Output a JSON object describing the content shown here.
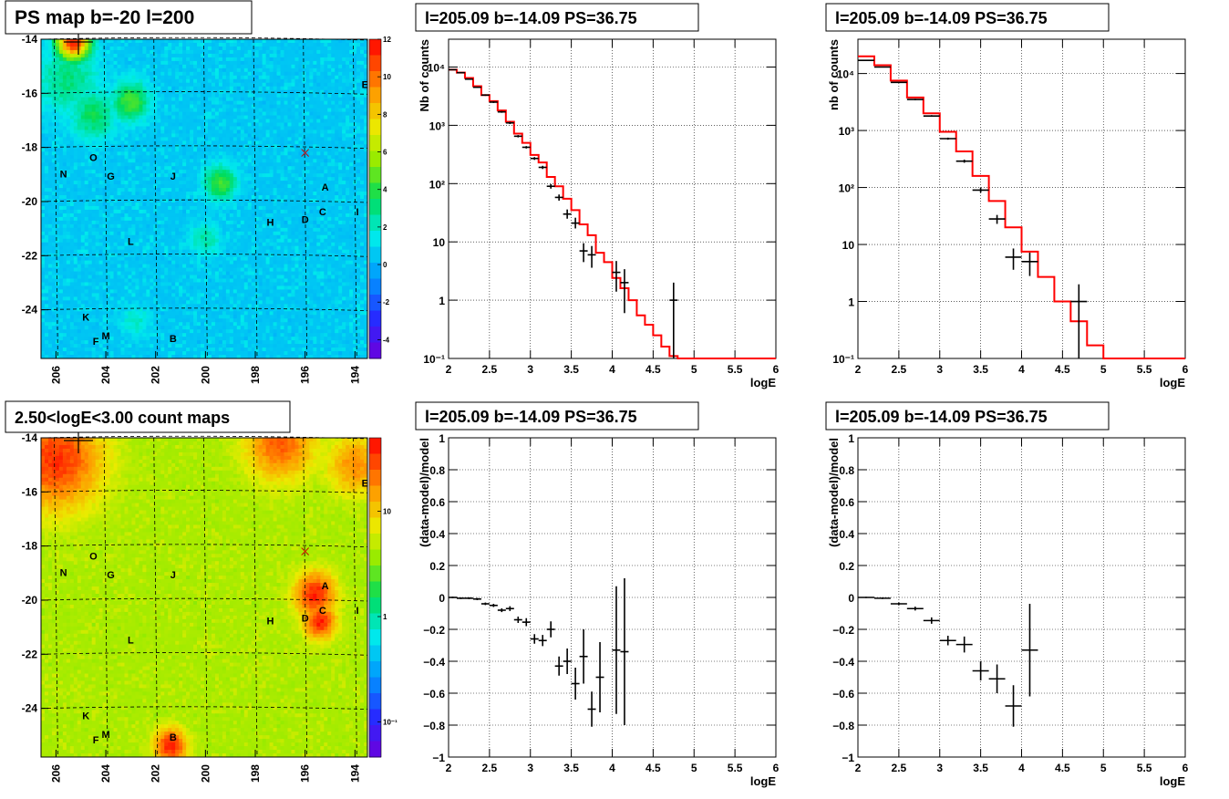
{
  "chart_data": [
    {
      "type": "heatmap",
      "id": "map1",
      "title": "PS map b=-20 l=200",
      "x_ticks": [
        "206",
        "204",
        "202",
        "200",
        "198",
        "196",
        "194"
      ],
      "y_ticks": [
        "-14",
        "-16",
        "-18",
        "-20",
        "-22",
        "-24"
      ],
      "xlim": [
        206.6,
        193.5
      ],
      "ylim": [
        -25.8,
        -14.0
      ],
      "palette_ticks": [
        "12",
        "10",
        "8",
        "6",
        "4",
        "2",
        "0",
        "-2",
        "-4"
      ],
      "zlim": [
        -5,
        12
      ],
      "colormap": "rainbow",
      "background_level": 0.3,
      "hotspots": [
        {
          "l": 205.3,
          "b": -14.1,
          "r": 0.7,
          "level": 11.5
        },
        {
          "l": 203.0,
          "b": -16.3,
          "r": 0.8,
          "level": 4.5
        },
        {
          "l": 204.5,
          "b": -16.8,
          "r": 1.0,
          "level": 3.5
        },
        {
          "l": 199.4,
          "b": -19.3,
          "r": 0.7,
          "level": 4.5
        },
        {
          "l": 205.5,
          "b": -15.5,
          "r": 1.4,
          "level": 3.0
        },
        {
          "l": 200.0,
          "b": -21.4,
          "r": 0.7,
          "level": 2.5
        },
        {
          "l": 202.8,
          "b": -24.4,
          "r": 0.7,
          "level": 2.0
        }
      ],
      "sources": [
        {
          "label": "N",
          "l": 205.7,
          "b": -19.1
        },
        {
          "label": "O",
          "l": 204.5,
          "b": -18.5
        },
        {
          "label": "G",
          "l": 203.8,
          "b": -19.2
        },
        {
          "label": "J",
          "l": 201.3,
          "b": -19.2
        },
        {
          "label": "A",
          "l": 195.2,
          "b": -19.6
        },
        {
          "label": "C",
          "l": 195.3,
          "b": -20.5
        },
        {
          "label": "D",
          "l": 196.0,
          "b": -20.8
        },
        {
          "label": "H",
          "l": 197.4,
          "b": -20.9
        },
        {
          "label": "I",
          "l": 193.9,
          "b": -20.5
        },
        {
          "label": "L",
          "l": 203.0,
          "b": -21.6
        },
        {
          "label": "K",
          "l": 204.8,
          "b": -24.4
        },
        {
          "label": "M",
          "l": 204.0,
          "b": -25.1
        },
        {
          "label": "F",
          "l": 204.4,
          "b": -25.3
        },
        {
          "label": "B",
          "l": 201.3,
          "b": -25.2
        },
        {
          "label": "E",
          "l": 193.6,
          "b": -15.8
        }
      ],
      "cross": {
        "l": 196.0,
        "b": -18.2
      },
      "marker": {
        "l": 205.1,
        "b": -14.1
      }
    },
    {
      "type": "heatmap",
      "id": "map2",
      "title": "2.50<logE<3.00 count maps",
      "x_ticks": [
        "206",
        "204",
        "202",
        "200",
        "198",
        "196",
        "194"
      ],
      "y_ticks": [
        "-14",
        "-16",
        "-18",
        "-20",
        "-22",
        "-24"
      ],
      "xlim": [
        206.6,
        193.5
      ],
      "ylim": [
        -25.8,
        -14.0
      ],
      "palette_ticks": [
        "10",
        "1",
        "10⁻¹"
      ],
      "zscale": "log",
      "colormap": "rainbow",
      "background_level": 0.62,
      "hotspots": [
        {
          "l": 206.0,
          "b": -14.8,
          "r": 2.0,
          "level": 0.95
        },
        {
          "l": 197.0,
          "b": -14.2,
          "r": 1.5,
          "level": 0.9
        },
        {
          "l": 195.6,
          "b": -19.8,
          "r": 0.9,
          "level": 0.97
        },
        {
          "l": 195.4,
          "b": -20.8,
          "r": 0.7,
          "level": 0.97
        },
        {
          "l": 201.4,
          "b": -25.4,
          "r": 0.7,
          "level": 0.97
        },
        {
          "l": 194.0,
          "b": -15.0,
          "r": 1.2,
          "level": 0.85
        }
      ],
      "sources": [
        {
          "label": "N",
          "l": 205.7,
          "b": -19.1
        },
        {
          "label": "O",
          "l": 204.5,
          "b": -18.5
        },
        {
          "label": "G",
          "l": 203.8,
          "b": -19.2
        },
        {
          "label": "J",
          "l": 201.3,
          "b": -19.2
        },
        {
          "label": "A",
          "l": 195.2,
          "b": -19.6
        },
        {
          "label": "C",
          "l": 195.3,
          "b": -20.5
        },
        {
          "label": "D",
          "l": 196.0,
          "b": -20.8
        },
        {
          "label": "H",
          "l": 197.4,
          "b": -20.9
        },
        {
          "label": "I",
          "l": 193.9,
          "b": -20.5
        },
        {
          "label": "L",
          "l": 203.0,
          "b": -21.6
        },
        {
          "label": "K",
          "l": 204.8,
          "b": -24.4
        },
        {
          "label": "M",
          "l": 204.0,
          "b": -25.1
        },
        {
          "label": "F",
          "l": 204.4,
          "b": -25.3
        },
        {
          "label": "B",
          "l": 201.3,
          "b": -25.2
        },
        {
          "label": "E",
          "l": 193.6,
          "b": -15.8
        }
      ],
      "cross": {
        "l": 196.0,
        "b": -18.2
      },
      "marker": {
        "l": 205.1,
        "b": -14.1
      }
    },
    {
      "type": "line",
      "id": "spec1",
      "title": "l=205.09 b=-14.09 PS=36.75",
      "xlabel": "logE",
      "ylabel": "Nb of counts",
      "xlim": [
        2,
        6
      ],
      "ylim": [
        0.1,
        30000
      ],
      "yscale": "log",
      "grid": true,
      "x_ticks": [
        2,
        2.5,
        3,
        3.5,
        4,
        4.5,
        5,
        5.5,
        6
      ],
      "x_tick_labels": [
        "2",
        "2.5",
        "3",
        "3.5",
        "4",
        "4.5",
        "5",
        "5.5",
        "6"
      ],
      "y_ticks": [
        0.1,
        1,
        10,
        100,
        1000,
        10000
      ],
      "y_tick_labels": [
        "10⁻¹",
        "1",
        "10",
        "10²",
        "10³",
        "10⁴"
      ],
      "model_color": "#ff0000",
      "model_bin_width": 0.1,
      "model": [
        {
          "x": 2.0,
          "y": 9000
        },
        {
          "x": 2.1,
          "y": 8000
        },
        {
          "x": 2.2,
          "y": 6500
        },
        {
          "x": 2.3,
          "y": 4700
        },
        {
          "x": 2.4,
          "y": 3300
        },
        {
          "x": 2.5,
          "y": 2600
        },
        {
          "x": 2.6,
          "y": 1800
        },
        {
          "x": 2.7,
          "y": 1150
        },
        {
          "x": 2.8,
          "y": 720
        },
        {
          "x": 2.9,
          "y": 500
        },
        {
          "x": 3.0,
          "y": 310
        },
        {
          "x": 3.1,
          "y": 230
        },
        {
          "x": 3.2,
          "y": 130
        },
        {
          "x": 3.3,
          "y": 90
        },
        {
          "x": 3.4,
          "y": 55
        },
        {
          "x": 3.5,
          "y": 35
        },
        {
          "x": 3.6,
          "y": 20
        },
        {
          "x": 3.7,
          "y": 13
        },
        {
          "x": 3.8,
          "y": 6.5
        },
        {
          "x": 3.9,
          "y": 4.5
        },
        {
          "x": 4.0,
          "y": 2.4
        },
        {
          "x": 4.1,
          "y": 1.6
        },
        {
          "x": 4.2,
          "y": 1.0
        },
        {
          "x": 4.3,
          "y": 0.55
        },
        {
          "x": 4.4,
          "y": 0.38
        },
        {
          "x": 4.5,
          "y": 0.25
        },
        {
          "x": 4.6,
          "y": 0.16
        },
        {
          "x": 4.7,
          "y": 0.11
        },
        {
          "x": 4.8,
          "y": 0.1
        },
        {
          "x": 4.9,
          "y": 0.1
        },
        {
          "x": 5.0,
          "y": 0.1
        },
        {
          "x": 5.1,
          "y": 0.1
        },
        {
          "x": 5.2,
          "y": 0.1
        },
        {
          "x": 5.3,
          "y": 0.1
        },
        {
          "x": 5.4,
          "y": 0.1
        },
        {
          "x": 5.5,
          "y": 0.1
        },
        {
          "x": 5.6,
          "y": 0.1
        },
        {
          "x": 5.7,
          "y": 0.1
        },
        {
          "x": 5.8,
          "y": 0.1
        },
        {
          "x": 5.9,
          "y": 0.1
        }
      ],
      "points": [
        {
          "x": 2.05,
          "y": 9000,
          "lo": 8900,
          "hi": 9100
        },
        {
          "x": 2.15,
          "y": 8000,
          "lo": 7900,
          "hi": 8100
        },
        {
          "x": 2.25,
          "y": 6200,
          "lo": 6100,
          "hi": 6300
        },
        {
          "x": 2.35,
          "y": 4500,
          "lo": 4400,
          "hi": 4600
        },
        {
          "x": 2.45,
          "y": 3300,
          "lo": 3200,
          "hi": 3400
        },
        {
          "x": 2.55,
          "y": 2500,
          "lo": 2420,
          "hi": 2580
        },
        {
          "x": 2.65,
          "y": 1700,
          "lo": 1640,
          "hi": 1760
        },
        {
          "x": 2.75,
          "y": 1100,
          "lo": 1050,
          "hi": 1150
        },
        {
          "x": 2.85,
          "y": 650,
          "lo": 620,
          "hi": 680
        },
        {
          "x": 2.95,
          "y": 420,
          "lo": 400,
          "hi": 440
        },
        {
          "x": 3.05,
          "y": 270,
          "lo": 255,
          "hi": 285
        },
        {
          "x": 3.15,
          "y": 190,
          "lo": 178,
          "hi": 202
        },
        {
          "x": 3.25,
          "y": 90,
          "lo": 82,
          "hi": 98
        },
        {
          "x": 3.35,
          "y": 58,
          "lo": 51,
          "hi": 65
        },
        {
          "x": 3.45,
          "y": 30,
          "lo": 25,
          "hi": 36
        },
        {
          "x": 3.55,
          "y": 21,
          "lo": 17,
          "hi": 26
        },
        {
          "x": 3.65,
          "y": 7,
          "lo": 4.5,
          "hi": 9.5
        },
        {
          "x": 3.75,
          "y": 6,
          "lo": 3.6,
          "hi": 8.5
        },
        {
          "x": 4.05,
          "y": 3,
          "lo": 1.4,
          "hi": 4.7
        },
        {
          "x": 4.15,
          "y": 2,
          "lo": 0.6,
          "hi": 3.4
        },
        {
          "x": 4.75,
          "y": 1,
          "lo": 0.1,
          "hi": 2.0
        }
      ]
    },
    {
      "type": "line",
      "id": "spec2",
      "title": "l=205.09 b=-14.09 PS=36.75",
      "xlabel": "logE",
      "ylabel": "nb of counts",
      "xlim": [
        2,
        6
      ],
      "ylim": [
        0.1,
        40000
      ],
      "yscale": "log",
      "grid": true,
      "x_ticks": [
        2,
        2.5,
        3,
        3.5,
        4,
        4.5,
        5,
        5.5,
        6
      ],
      "x_tick_labels": [
        "2",
        "2.5",
        "3",
        "3.5",
        "4",
        "4.5",
        "5",
        "5.5",
        "6"
      ],
      "y_ticks": [
        0.1,
        1,
        10,
        100,
        1000,
        10000
      ],
      "y_tick_labels": [
        "10⁻¹",
        "1",
        "10",
        "10²",
        "10³",
        "10⁴"
      ],
      "model_color": "#ff0000",
      "model_bin_width": 0.2,
      "model": [
        {
          "x": 2.0,
          "y": 20000
        },
        {
          "x": 2.2,
          "y": 14000
        },
        {
          "x": 2.4,
          "y": 7500
        },
        {
          "x": 2.6,
          "y": 3800
        },
        {
          "x": 2.8,
          "y": 2000
        },
        {
          "x": 3.0,
          "y": 950
        },
        {
          "x": 3.2,
          "y": 430
        },
        {
          "x": 3.4,
          "y": 160
        },
        {
          "x": 3.6,
          "y": 58
        },
        {
          "x": 3.8,
          "y": 20
        },
        {
          "x": 4.0,
          "y": 7.5
        },
        {
          "x": 4.2,
          "y": 2.7
        },
        {
          "x": 4.4,
          "y": 1.0
        },
        {
          "x": 4.6,
          "y": 0.45
        },
        {
          "x": 4.8,
          "y": 0.17
        },
        {
          "x": 5.0,
          "y": 0.1
        },
        {
          "x": 5.2,
          "y": 0.1
        },
        {
          "x": 5.4,
          "y": 0.1
        },
        {
          "x": 5.6,
          "y": 0.1
        },
        {
          "x": 5.8,
          "y": 0.1
        }
      ],
      "points": [
        {
          "x": 2.1,
          "y": 17000,
          "lo": 16700,
          "hi": 17300
        },
        {
          "x": 2.3,
          "y": 13000,
          "lo": 12800,
          "hi": 13200
        },
        {
          "x": 2.5,
          "y": 7000,
          "lo": 6850,
          "hi": 7150
        },
        {
          "x": 2.7,
          "y": 3500,
          "lo": 3400,
          "hi": 3600
        },
        {
          "x": 2.9,
          "y": 1800,
          "lo": 1740,
          "hi": 1860
        },
        {
          "x": 3.1,
          "y": 720,
          "lo": 690,
          "hi": 750
        },
        {
          "x": 3.3,
          "y": 290,
          "lo": 272,
          "hi": 308
        },
        {
          "x": 3.5,
          "y": 90,
          "lo": 81,
          "hi": 99
        },
        {
          "x": 3.7,
          "y": 28,
          "lo": 23,
          "hi": 33
        },
        {
          "x": 3.9,
          "y": 6,
          "lo": 3.6,
          "hi": 8.5
        },
        {
          "x": 4.1,
          "y": 5,
          "lo": 2.8,
          "hi": 7.2
        },
        {
          "x": 4.7,
          "y": 1,
          "lo": 0.1,
          "hi": 2.0
        }
      ]
    },
    {
      "type": "scatter",
      "id": "res1",
      "title": "l=205.09 b=-14.09 PS=36.75",
      "xlabel": "logE",
      "ylabel": "(data-model)/model",
      "xlim": [
        2,
        6
      ],
      "ylim": [
        -1,
        1
      ],
      "grid": true,
      "x_ticks": [
        2,
        2.5,
        3,
        3.5,
        4,
        4.5,
        5,
        5.5,
        6
      ],
      "x_tick_labels": [
        "2",
        "2.5",
        "3",
        "3.5",
        "4",
        "4.5",
        "5",
        "5.5",
        "6"
      ],
      "y_ticks": [
        -1,
        -0.8,
        -0.6,
        -0.4,
        -0.2,
        0,
        0.2,
        0.4,
        0.6,
        0.8,
        1
      ],
      "y_tick_labels": [
        "−1",
        "−0.8",
        "−0.6",
        "−0.4",
        "−0.2",
        "0",
        "0.2",
        "0.4",
        "0.6",
        "0.8",
        "1"
      ],
      "x_half_width": 0.05,
      "points": [
        {
          "x": 2.05,
          "y": 0.0,
          "err": 0.005
        },
        {
          "x": 2.15,
          "y": -0.005,
          "err": 0.005
        },
        {
          "x": 2.25,
          "y": -0.005,
          "err": 0.006
        },
        {
          "x": 2.35,
          "y": -0.01,
          "err": 0.007
        },
        {
          "x": 2.45,
          "y": -0.04,
          "err": 0.008
        },
        {
          "x": 2.55,
          "y": -0.05,
          "err": 0.01
        },
        {
          "x": 2.65,
          "y": -0.08,
          "err": 0.012
        },
        {
          "x": 2.75,
          "y": -0.07,
          "err": 0.015
        },
        {
          "x": 2.85,
          "y": -0.14,
          "err": 0.02
        },
        {
          "x": 2.95,
          "y": -0.155,
          "err": 0.025
        },
        {
          "x": 3.05,
          "y": -0.26,
          "err": 0.03
        },
        {
          "x": 3.15,
          "y": -0.27,
          "err": 0.035
        },
        {
          "x": 3.25,
          "y": -0.2,
          "err": 0.05
        },
        {
          "x": 3.35,
          "y": -0.43,
          "err": 0.06
        },
        {
          "x": 3.45,
          "y": -0.4,
          "err": 0.08
        },
        {
          "x": 3.55,
          "y": -0.54,
          "err": 0.1
        },
        {
          "x": 3.65,
          "y": -0.37,
          "err": 0.17
        },
        {
          "x": 3.75,
          "y": -0.7,
          "err": 0.11
        },
        {
          "x": 3.85,
          "y": -0.5,
          "err": 0.22
        },
        {
          "x": 4.05,
          "y": -0.33,
          "err": 0.4
        },
        {
          "x": 4.15,
          "y": -0.34,
          "err": 0.46
        }
      ]
    },
    {
      "type": "scatter",
      "id": "res2",
      "title": "l=205.09 b=-14.09 PS=36.75",
      "xlabel": "logE",
      "ylabel": "(data-model)/model",
      "xlim": [
        2,
        6
      ],
      "ylim": [
        -1,
        1
      ],
      "grid": true,
      "x_ticks": [
        2,
        2.5,
        3,
        3.5,
        4,
        4.5,
        5,
        5.5,
        6
      ],
      "x_tick_labels": [
        "2",
        "2.5",
        "3",
        "3.5",
        "4",
        "4.5",
        "5",
        "5.5",
        "6"
      ],
      "y_ticks": [
        -1,
        -0.8,
        -0.6,
        -0.4,
        -0.2,
        0,
        0.2,
        0.4,
        0.6,
        0.8,
        1
      ],
      "y_tick_labels": [
        "−1",
        "−0.8",
        "−0.6",
        "−0.4",
        "−0.2",
        "0",
        "0.2",
        "0.4",
        "0.6",
        "0.8",
        "1"
      ],
      "x_half_width": 0.1,
      "points": [
        {
          "x": 2.1,
          "y": 0.0,
          "err": 0.004
        },
        {
          "x": 2.3,
          "y": -0.005,
          "err": 0.005
        },
        {
          "x": 2.5,
          "y": -0.04,
          "err": 0.008
        },
        {
          "x": 2.7,
          "y": -0.07,
          "err": 0.012
        },
        {
          "x": 2.9,
          "y": -0.145,
          "err": 0.02
        },
        {
          "x": 3.1,
          "y": -0.27,
          "err": 0.03
        },
        {
          "x": 3.3,
          "y": -0.295,
          "err": 0.05
        },
        {
          "x": 3.5,
          "y": -0.46,
          "err": 0.06
        },
        {
          "x": 3.7,
          "y": -0.51,
          "err": 0.09
        },
        {
          "x": 3.9,
          "y": -0.68,
          "err": 0.13
        },
        {
          "x": 4.1,
          "y": -0.33,
          "err": 0.29
        }
      ]
    }
  ]
}
